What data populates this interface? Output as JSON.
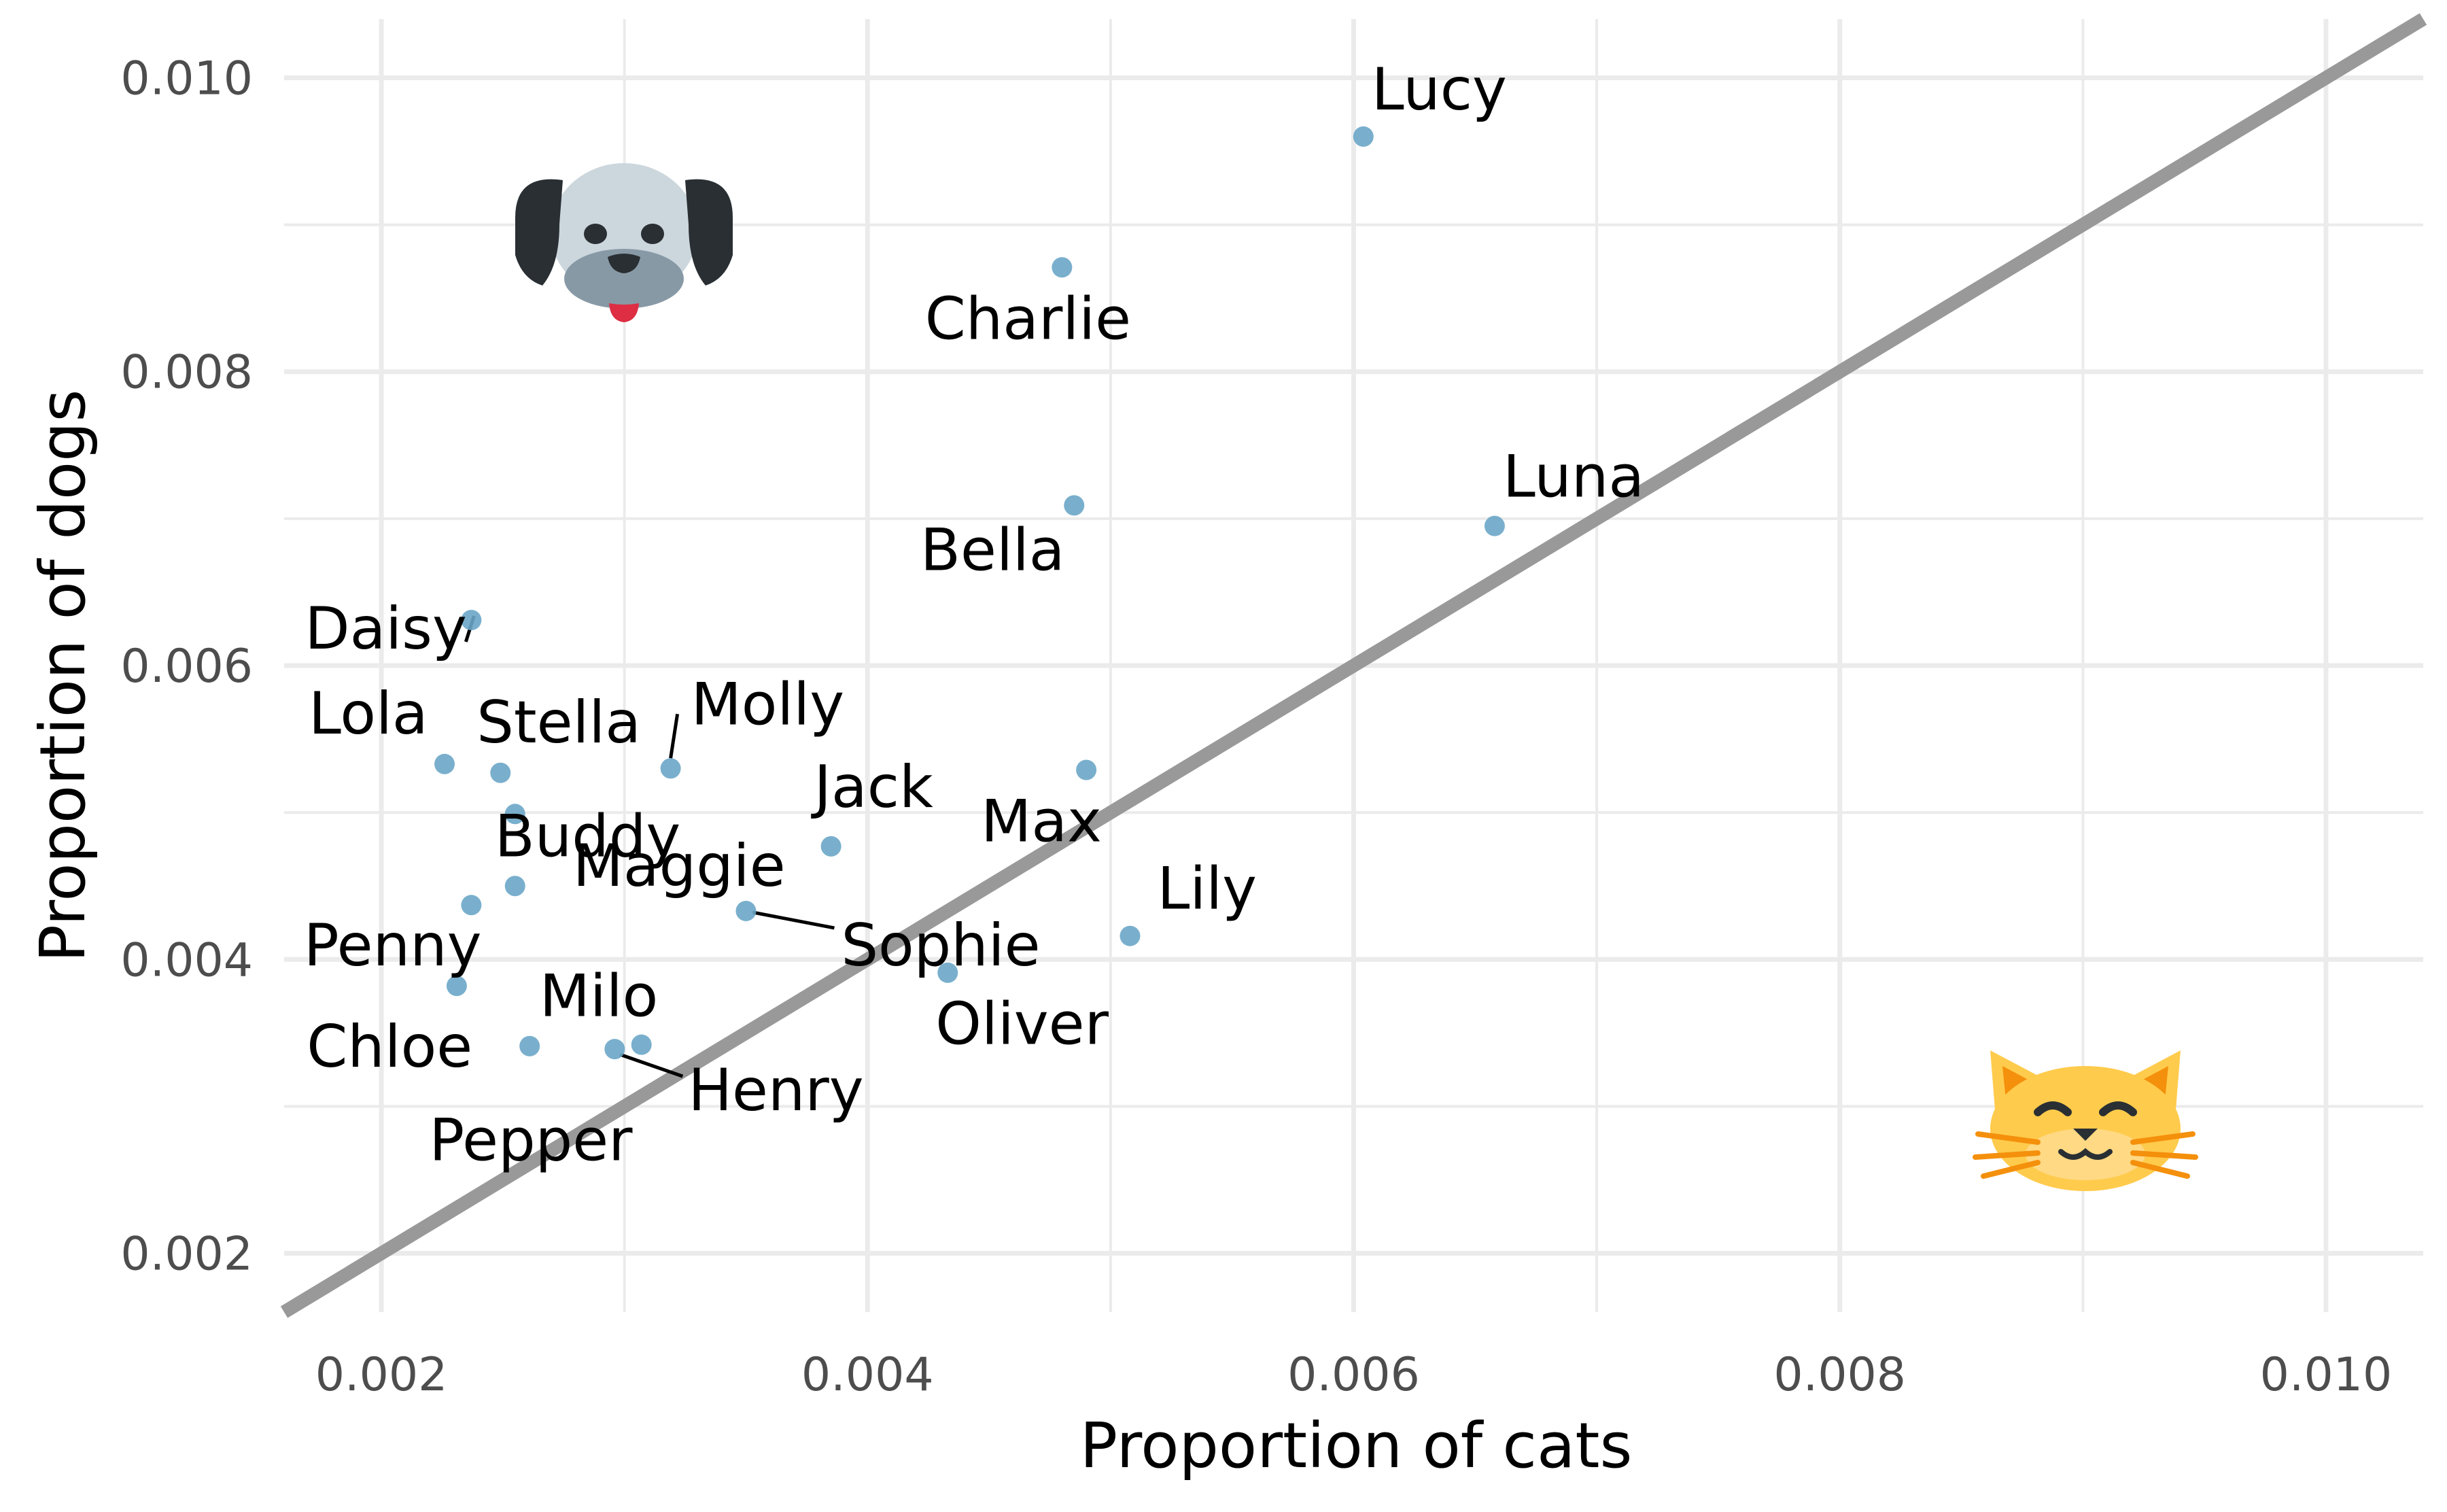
{
  "chart_data": {
    "type": "scatter",
    "xlabel": "Proportion of cats",
    "ylabel": "Proportion of dogs",
    "xlim": [
      0.0016,
      0.0104
    ],
    "ylim": [
      0.0016,
      0.0104
    ],
    "x_ticks": [
      "0.002",
      "0.004",
      "0.006",
      "0.008",
      "0.010"
    ],
    "y_ticks": [
      "0.002",
      "0.004",
      "0.006",
      "0.008",
      "0.010"
    ],
    "grid": true,
    "reference_line": {
      "slope": 1,
      "intercept": 0,
      "color": "#999999"
    },
    "point_color": "#6aa6c8",
    "icons": {
      "top_left": "dog-face-icon",
      "bottom_right": "cat-face-icon"
    },
    "points": [
      {
        "name": "Lucy",
        "x": 0.00604,
        "y": 0.0096
      },
      {
        "name": "Charlie",
        "x": 0.0048,
        "y": 0.00871
      },
      {
        "name": "Bella",
        "x": 0.00485,
        "y": 0.00709
      },
      {
        "name": "Luna",
        "x": 0.00658,
        "y": 0.00695
      },
      {
        "name": "Daisy",
        "x": 0.00237,
        "y": 0.00631
      },
      {
        "name": "Lola",
        "x": 0.00226,
        "y": 0.00533
      },
      {
        "name": "Stella",
        "x": 0.00249,
        "y": 0.00527
      },
      {
        "name": "Molly",
        "x": 0.00319,
        "y": 0.0053
      },
      {
        "name": "Buddy",
        "x": 0.00255,
        "y": 0.00499
      },
      {
        "name": "Max",
        "x": 0.0049,
        "y": 0.00529
      },
      {
        "name": "Jack",
        "x": 0.00385,
        "y": 0.00477
      },
      {
        "name": "Maggie",
        "x": 0.00255,
        "y": 0.0045
      },
      {
        "name": "Sophie",
        "x": 0.0035,
        "y": 0.00433
      },
      {
        "name": "Lily",
        "x": 0.00508,
        "y": 0.00416
      },
      {
        "name": "Penny",
        "x": 0.00231,
        "y": 0.00382
      },
      {
        "name": "Oliver",
        "x": 0.00433,
        "y": 0.00391
      },
      {
        "name": "Milo",
        "x": 0.00307,
        "y": 0.00342
      },
      {
        "name": "Chloe",
        "x": 0.00261,
        "y": 0.00341
      },
      {
        "name": "Henry",
        "x": 0.00296,
        "y": 0.00339
      },
      {
        "name": "Pepper",
        "x": 0.00237,
        "y": 0.00437
      }
    ]
  }
}
